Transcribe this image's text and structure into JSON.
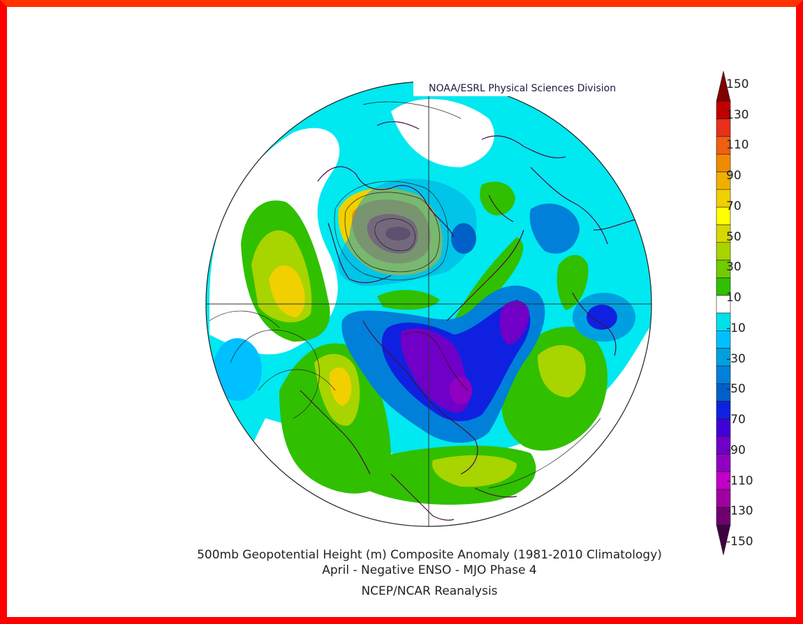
{
  "credit": "NOAA/ESRL Physical Sciences Division",
  "title_line1": "500mb Geopotential Height (m) Composite Anomaly (1981-2010 Climatology)",
  "title_line2": "April - Negative ENSO - MJO Phase 4",
  "title_line3": "NCEP/NCAR Reanalysis",
  "colorbar": {
    "labels": [
      "150",
      "130",
      "110",
      "90",
      "70",
      "50",
      "30",
      "10",
      "-10",
      "-30",
      "-50",
      "-70",
      "-90",
      "-110",
      "-130",
      "-150"
    ],
    "colors": [
      "#800000",
      "#c00000",
      "#e8301a",
      "#f06010",
      "#f08a00",
      "#f0b000",
      "#f0d000",
      "#ffff00",
      "#d8d800",
      "#a8d400",
      "#70cc00",
      "#30c000",
      "#ffffff",
      "#00e0e8",
      "#00c0ff",
      "#00a0e0",
      "#0080d8",
      "#0060c8",
      "#1020e0",
      "#4000d8",
      "#7000c8",
      "#9000c0",
      "#c000c8",
      "#a000a0",
      "#700070",
      "#400040"
    ],
    "min": -150,
    "max": 150
  }
}
